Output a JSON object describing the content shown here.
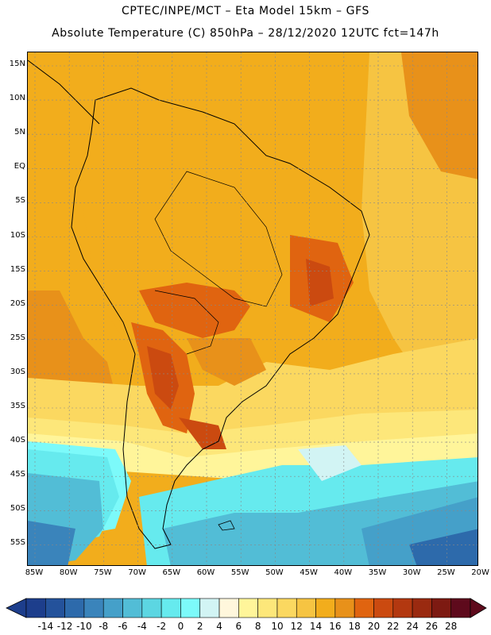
{
  "header": {
    "line1": "CPTEC/INPE/MCT –  Eta Model 15km – GFS",
    "line2": "Absolute Temperature (C) 850hPa – 28/12/2020 12UTC fct=147h"
  },
  "map": {
    "lat_labels": [
      "15N",
      "10N",
      "5N",
      "EQ",
      "5S",
      "10S",
      "15S",
      "20S",
      "25S",
      "30S",
      "35S",
      "40S",
      "45S",
      "50S",
      "55S"
    ],
    "lon_labels": [
      "85W",
      "80W",
      "75W",
      "70W",
      "65W",
      "60W",
      "55W",
      "50W",
      "45W",
      "40W",
      "35W",
      "30W",
      "25W",
      "20W"
    ],
    "lat_range": [
      -58,
      17
    ],
    "lon_range": [
      -86,
      -19.5
    ],
    "grid": true
  },
  "colorbar": {
    "labels": [
      "-14",
      "-12",
      "-10",
      "-8",
      "-6",
      "-4",
      "-2",
      "0",
      "2",
      "4",
      "6",
      "8",
      "10",
      "12",
      "14",
      "16",
      "18",
      "20",
      "22",
      "24",
      "26",
      "28"
    ],
    "colors": [
      "#1d3e8c",
      "#24529b",
      "#2d6aab",
      "#3a84bb",
      "#45a0c9",
      "#52bdd6",
      "#5cd6e2",
      "#66eaee",
      "#7cfafa",
      "#d2f4f4",
      "#fff7dc",
      "#fff59a",
      "#fde77a",
      "#fbd860",
      "#f6c442",
      "#f2ad1c",
      "#e8911a",
      "#e06410",
      "#cb4a10",
      "#b33810",
      "#9a2a10",
      "#7d1a12",
      "#5e0a1c"
    ]
  }
}
